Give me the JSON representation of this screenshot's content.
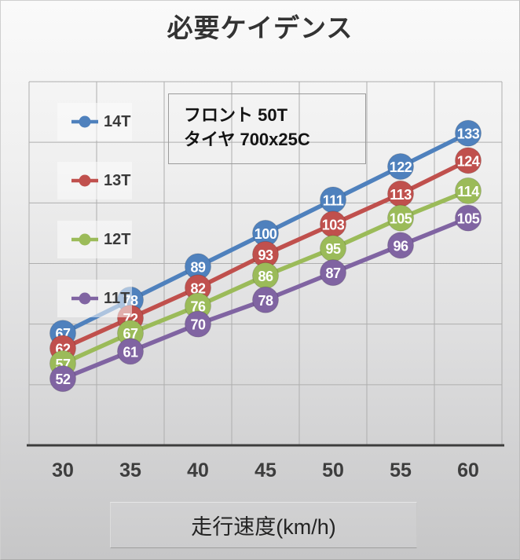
{
  "title": "必要ケイデンス",
  "info_box": {
    "line1": "フロント 50T",
    "line2": "タイヤ 700x25C"
  },
  "x_axis": {
    "title": "走行速度(km/h)"
  },
  "colors": {
    "grid": "#aeaeae",
    "axis_line": "#3d3d3d",
    "tick_text": "#3d3d3d",
    "point_label_text": "#ffffff",
    "series_blue": "#4F81BD",
    "series_red": "#C0504D",
    "series_green": "#9BBB59",
    "series_purple": "#8064A2"
  },
  "chart_data": {
    "type": "line",
    "title": "必要ケイデンス",
    "x": [
      30,
      35,
      40,
      45,
      50,
      55,
      60
    ],
    "xlabel": "走行速度(km/h)",
    "ylabel": "",
    "ylim": [
      30,
      150
    ],
    "y_grid_step": 20,
    "y_axis_labels_visible": false,
    "grid": true,
    "legend_position": "upper-left",
    "annotation": "フロント 50T タイヤ 700x25C",
    "point_labels": "each data point shows its value inside a colored circle marker",
    "series": [
      {
        "name": "14T",
        "color": "#4F81BD",
        "values": [
          67,
          78,
          89,
          100,
          111,
          122,
          133
        ]
      },
      {
        "name": "13T",
        "color": "#C0504D",
        "values": [
          62,
          72,
          82,
          93,
          103,
          113,
          124
        ]
      },
      {
        "name": "12T",
        "color": "#9BBB59",
        "values": [
          57,
          67,
          76,
          86,
          95,
          105,
          114
        ]
      },
      {
        "name": "11T",
        "color": "#8064A2",
        "values": [
          52,
          61,
          70,
          78,
          87,
          96,
          105
        ]
      }
    ]
  }
}
